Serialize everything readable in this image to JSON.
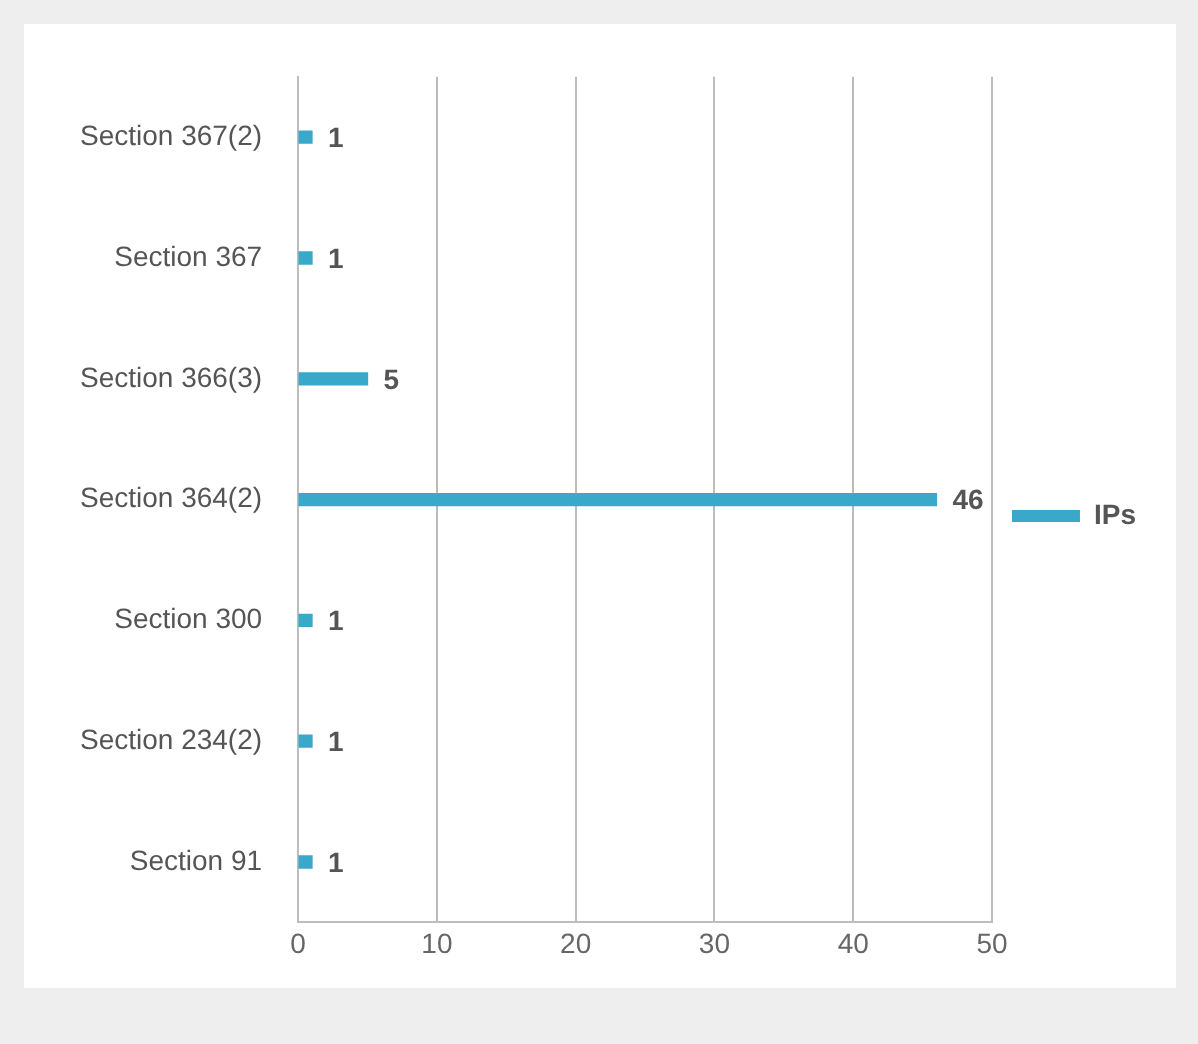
{
  "chart_data": {
    "type": "bar",
    "orientation": "horizontal",
    "categories": [
      "Section 367(2)",
      "Section 367",
      "Section 366(3)",
      "Section 364(2)",
      "Section 300",
      "Section 234(2)",
      "Section 91"
    ],
    "series": [
      {
        "name": "IPs",
        "color": "#3aa8c9",
        "values": [
          1,
          1,
          5,
          46,
          1,
          1,
          1
        ]
      }
    ],
    "xlim": [
      0,
      50
    ],
    "xticks": [
      0,
      10,
      20,
      30,
      40,
      50
    ],
    "grid": "x",
    "legend": "right",
    "data_labels": true
  }
}
